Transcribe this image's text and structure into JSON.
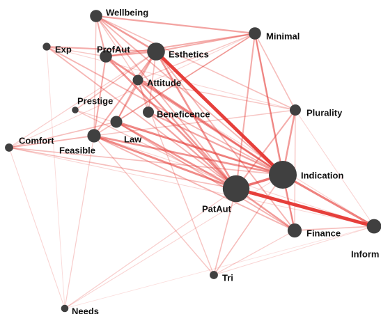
{
  "colors": {
    "node": "#404040",
    "edge": "#e53935",
    "background": "#ffffff"
  },
  "nodes": [
    {
      "id": "Wellbeing",
      "label": "Wellbeing",
      "weight": 0.3
    },
    {
      "id": "Minimal",
      "label": "Minimal",
      "weight": 0.3
    },
    {
      "id": "Exp",
      "label": "Exp",
      "weight": 0.1
    },
    {
      "id": "ProfAut",
      "label": "ProfAut",
      "weight": 0.3
    },
    {
      "id": "Esthetics",
      "label": "Esthetics",
      "weight": 0.55
    },
    {
      "id": "Attitude",
      "label": "Attitude",
      "weight": 0.22
    },
    {
      "id": "Prestige",
      "label": "Prestige",
      "weight": 0.05
    },
    {
      "id": "Beneficence",
      "label": "Beneficence",
      "weight": 0.25
    },
    {
      "id": "Plurality",
      "label": "Plurality",
      "weight": 0.25
    },
    {
      "id": "Comfort",
      "label": "Comfort",
      "weight": 0.12
    },
    {
      "id": "Law",
      "label": "Law",
      "weight": 0.28
    },
    {
      "id": "Feasible",
      "label": "Feasible",
      "weight": 0.35
    },
    {
      "id": "Indication",
      "label": "Indication",
      "weight": 1.0
    },
    {
      "id": "PatAut",
      "label": "PatAut",
      "weight": 0.95
    },
    {
      "id": "Finance",
      "label": "Finance",
      "weight": 0.38
    },
    {
      "id": "Inform",
      "label": "Inform",
      "weight": 0.4
    },
    {
      "id": "Tri",
      "label": "Tri",
      "weight": 0.12
    },
    {
      "id": "Needs",
      "label": "Needs",
      "weight": 0.08
    }
  ],
  "edges": [
    {
      "source": "Esthetics",
      "target": "Indication",
      "weight": 1.0
    },
    {
      "source": "PatAut",
      "target": "Inform",
      "weight": 1.0
    },
    {
      "source": "PatAut",
      "target": "Indication",
      "weight": 0.7
    },
    {
      "source": "Indication",
      "target": "Inform",
      "weight": 0.6
    },
    {
      "source": "Law",
      "target": "Indication",
      "weight": 0.55
    },
    {
      "source": "Feasible",
      "target": "PatAut",
      "weight": 0.55
    },
    {
      "source": "Feasible",
      "target": "Indication",
      "weight": 0.5
    },
    {
      "source": "Law",
      "target": "PatAut",
      "weight": 0.5
    },
    {
      "source": "Esthetics",
      "target": "PatAut",
      "weight": 0.5
    },
    {
      "source": "ProfAut",
      "target": "Indication",
      "weight": 0.5
    },
    {
      "source": "ProfAut",
      "target": "PatAut",
      "weight": 0.5
    },
    {
      "source": "Wellbeing",
      "target": "Esthetics",
      "weight": 0.45
    },
    {
      "source": "Wellbeing",
      "target": "Minimal",
      "weight": 0.4
    },
    {
      "source": "Minimal",
      "target": "Indication",
      "weight": 0.45
    },
    {
      "source": "Minimal",
      "target": "PatAut",
      "weight": 0.35
    },
    {
      "source": "Plurality",
      "target": "Indication",
      "weight": 0.45
    },
    {
      "source": "Plurality",
      "target": "PatAut",
      "weight": 0.35
    },
    {
      "source": "Finance",
      "target": "PatAut",
      "weight": 0.45
    },
    {
      "source": "Finance",
      "target": "Indication",
      "weight": 0.45
    },
    {
      "source": "Attitude",
      "target": "Indication",
      "weight": 0.45
    },
    {
      "source": "Attitude",
      "target": "PatAut",
      "weight": 0.45
    },
    {
      "source": "Beneficence",
      "target": "PatAut",
      "weight": 0.4
    },
    {
      "source": "Beneficence",
      "target": "Indication",
      "weight": 0.4
    },
    {
      "source": "Exp",
      "target": "Esthetics",
      "weight": 0.35
    },
    {
      "source": "Exp",
      "target": "Indication",
      "weight": 0.3
    },
    {
      "source": "Exp",
      "target": "PatAut",
      "weight": 0.3
    },
    {
      "source": "ProfAut",
      "target": "Esthetics",
      "weight": 0.4
    },
    {
      "source": "ProfAut",
      "target": "Minimal",
      "weight": 0.35
    },
    {
      "source": "ProfAut",
      "target": "Wellbeing",
      "weight": 0.35
    },
    {
      "source": "ProfAut",
      "target": "Feasible",
      "weight": 0.35
    },
    {
      "source": "Esthetics",
      "target": "Minimal",
      "weight": 0.35
    },
    {
      "source": "Esthetics",
      "target": "Finance",
      "weight": 0.3
    },
    {
      "source": "Comfort",
      "target": "Feasible",
      "weight": 0.3
    },
    {
      "source": "Comfort",
      "target": "Law",
      "weight": 0.25
    },
    {
      "source": "Comfort",
      "target": "PatAut",
      "weight": 0.25
    },
    {
      "source": "Comfort",
      "target": "Indication",
      "weight": 0.25
    },
    {
      "source": "Feasible",
      "target": "Esthetics",
      "weight": 0.35
    },
    {
      "source": "Feasible",
      "target": "Finance",
      "weight": 0.3
    },
    {
      "source": "Law",
      "target": "Finance",
      "weight": 0.3
    },
    {
      "source": "Law",
      "target": "Esthetics",
      "weight": 0.3
    },
    {
      "source": "Wellbeing",
      "target": "PatAut",
      "weight": 0.3
    },
    {
      "source": "Wellbeing",
      "target": "Indication",
      "weight": 0.3
    },
    {
      "source": "Wellbeing",
      "target": "Plurality",
      "weight": 0.25
    },
    {
      "source": "Minimal",
      "target": "Plurality",
      "weight": 0.25
    },
    {
      "source": "Minimal",
      "target": "Feasible",
      "weight": 0.25
    },
    {
      "source": "Tri",
      "target": "PatAut",
      "weight": 0.25
    },
    {
      "source": "Tri",
      "target": "Indication",
      "weight": 0.25
    },
    {
      "source": "Tri",
      "target": "Feasible",
      "weight": 0.2
    },
    {
      "source": "Tri",
      "target": "Attitude",
      "weight": 0.2
    },
    {
      "source": "Prestige",
      "target": "Esthetics",
      "weight": 0.25
    },
    {
      "source": "Prestige",
      "target": "PatAut",
      "weight": 0.2
    },
    {
      "source": "Plurality",
      "target": "Feasible",
      "weight": 0.2
    },
    {
      "source": "Plurality",
      "target": "Finance",
      "weight": 0.2
    },
    {
      "source": "Finance",
      "target": "Inform",
      "weight": 0.25
    },
    {
      "source": "Needs",
      "target": "PatAut",
      "weight": 0.15
    },
    {
      "source": "Needs",
      "target": "Feasible",
      "weight": 0.15
    },
    {
      "source": "Needs",
      "target": "Indication",
      "weight": 0.12
    },
    {
      "source": "Needs",
      "target": "Exp",
      "weight": 0.08
    },
    {
      "source": "Needs",
      "target": "Comfort",
      "weight": 0.12
    },
    {
      "source": "Inform",
      "target": "Comfort",
      "weight": 0.1
    },
    {
      "source": "Inform",
      "target": "Plurality",
      "weight": 0.12
    },
    {
      "source": "Inform",
      "target": "Feasible",
      "weight": 0.12
    },
    {
      "source": "Inform",
      "target": "Tri",
      "weight": 0.1
    },
    {
      "source": "Inform",
      "target": "Attitude",
      "weight": 0.12
    },
    {
      "source": "Attitude",
      "target": "Esthetics",
      "weight": 0.3
    },
    {
      "source": "Attitude",
      "target": "Law",
      "weight": 0.3
    },
    {
      "source": "Attitude",
      "target": "Beneficence",
      "weight": 0.25
    },
    {
      "source": "Attitude",
      "target": "Plurality",
      "weight": 0.2
    },
    {
      "source": "Beneficence",
      "target": "Esthetics",
      "weight": 0.25
    },
    {
      "source": "Exp",
      "target": "ProfAut",
      "weight": 0.2
    },
    {
      "source": "Exp",
      "target": "Plurality",
      "weight": 0.12
    },
    {
      "source": "Prestige",
      "target": "Indication",
      "weight": 0.15
    },
    {
      "source": "Minimal",
      "target": "Attitude",
      "weight": 0.2
    },
    {
      "source": "Minimal",
      "target": "Finance",
      "weight": 0.2
    },
    {
      "source": "Wellbeing",
      "target": "Attitude",
      "weight": 0.2
    },
    {
      "source": "Law",
      "target": "Minimal",
      "weight": 0.2
    },
    {
      "source": "Finance",
      "target": "Tri",
      "weight": 0.15
    },
    {
      "source": "Comfort",
      "target": "Esthetics",
      "weight": 0.15
    },
    {
      "source": "Comfort",
      "target": "Minimal",
      "weight": 0.12
    },
    {
      "source": "Wellbeing",
      "target": "Feasible",
      "weight": 0.2
    },
    {
      "source": "Needs",
      "target": "Inform",
      "weight": 0.06
    }
  ]
}
